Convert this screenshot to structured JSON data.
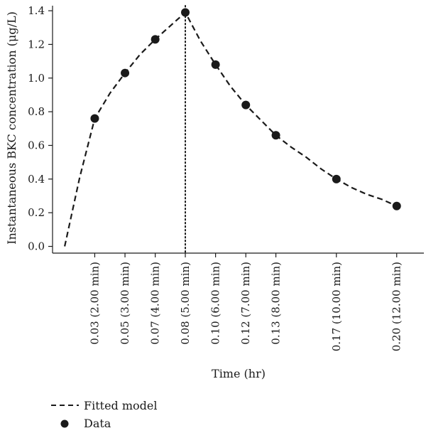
{
  "chart_data": {
    "type": "scatter",
    "title": "",
    "xlabel": "Time (hr)",
    "ylabel": "Instantaneous BKC concentration (μg/L)",
    "ylim": [
      -0.04,
      1.43
    ],
    "xlim": [
      0.01,
      0.215
    ],
    "y_ticks": [
      0.0,
      0.2,
      0.4,
      0.6,
      0.8,
      1.0,
      1.2,
      1.4
    ],
    "y_tick_labels": [
      "0.0",
      "0.2",
      "0.4",
      "0.6",
      "0.8",
      "1.0",
      "1.2",
      "1.4"
    ],
    "x_ticks": [
      0.0333,
      0.05,
      0.0667,
      0.0833,
      0.1,
      0.1167,
      0.1333,
      0.1667,
      0.2
    ],
    "x_tick_labels": [
      "0.03 (2.00 min)",
      "0.05 (3.00 min)",
      "0.07 (4.00 min)",
      "0.08 (5.00 min)",
      "0.10 (6.00 min)",
      "0.12 (7.00 min)",
      "0.13 (8.00 min)",
      "0.17 (10.00 min)",
      "0.20 (12.00 min)"
    ],
    "vertical_line_x": 0.0833,
    "grid": false,
    "legend_position": "bottom-left",
    "series": [
      {
        "name": "Fitted model",
        "type": "line",
        "style": "dashed",
        "color": "#1a1a1a",
        "x": [
          0.0167,
          0.025,
          0.0333,
          0.0417,
          0.05,
          0.0583,
          0.0667,
          0.075,
          0.0833,
          0.0917,
          0.1,
          0.1083,
          0.1167,
          0.125,
          0.1333,
          0.1417,
          0.15,
          0.1583,
          0.1667,
          0.175,
          0.1833,
          0.1917,
          0.2
        ],
        "y": [
          0.0,
          0.41,
          0.76,
          0.91,
          1.03,
          1.14,
          1.23,
          1.31,
          1.39,
          1.22,
          1.08,
          0.95,
          0.84,
          0.75,
          0.66,
          0.59,
          0.53,
          0.46,
          0.4,
          0.35,
          0.31,
          0.28,
          0.24
        ]
      },
      {
        "name": "Data",
        "type": "scatter",
        "color": "#1a1a1a",
        "x": [
          0.0333,
          0.05,
          0.0667,
          0.0833,
          0.1,
          0.1167,
          0.1333,
          0.1667,
          0.2
        ],
        "y": [
          0.76,
          1.03,
          1.23,
          1.39,
          1.08,
          0.84,
          0.66,
          0.4,
          0.24
        ]
      }
    ]
  }
}
